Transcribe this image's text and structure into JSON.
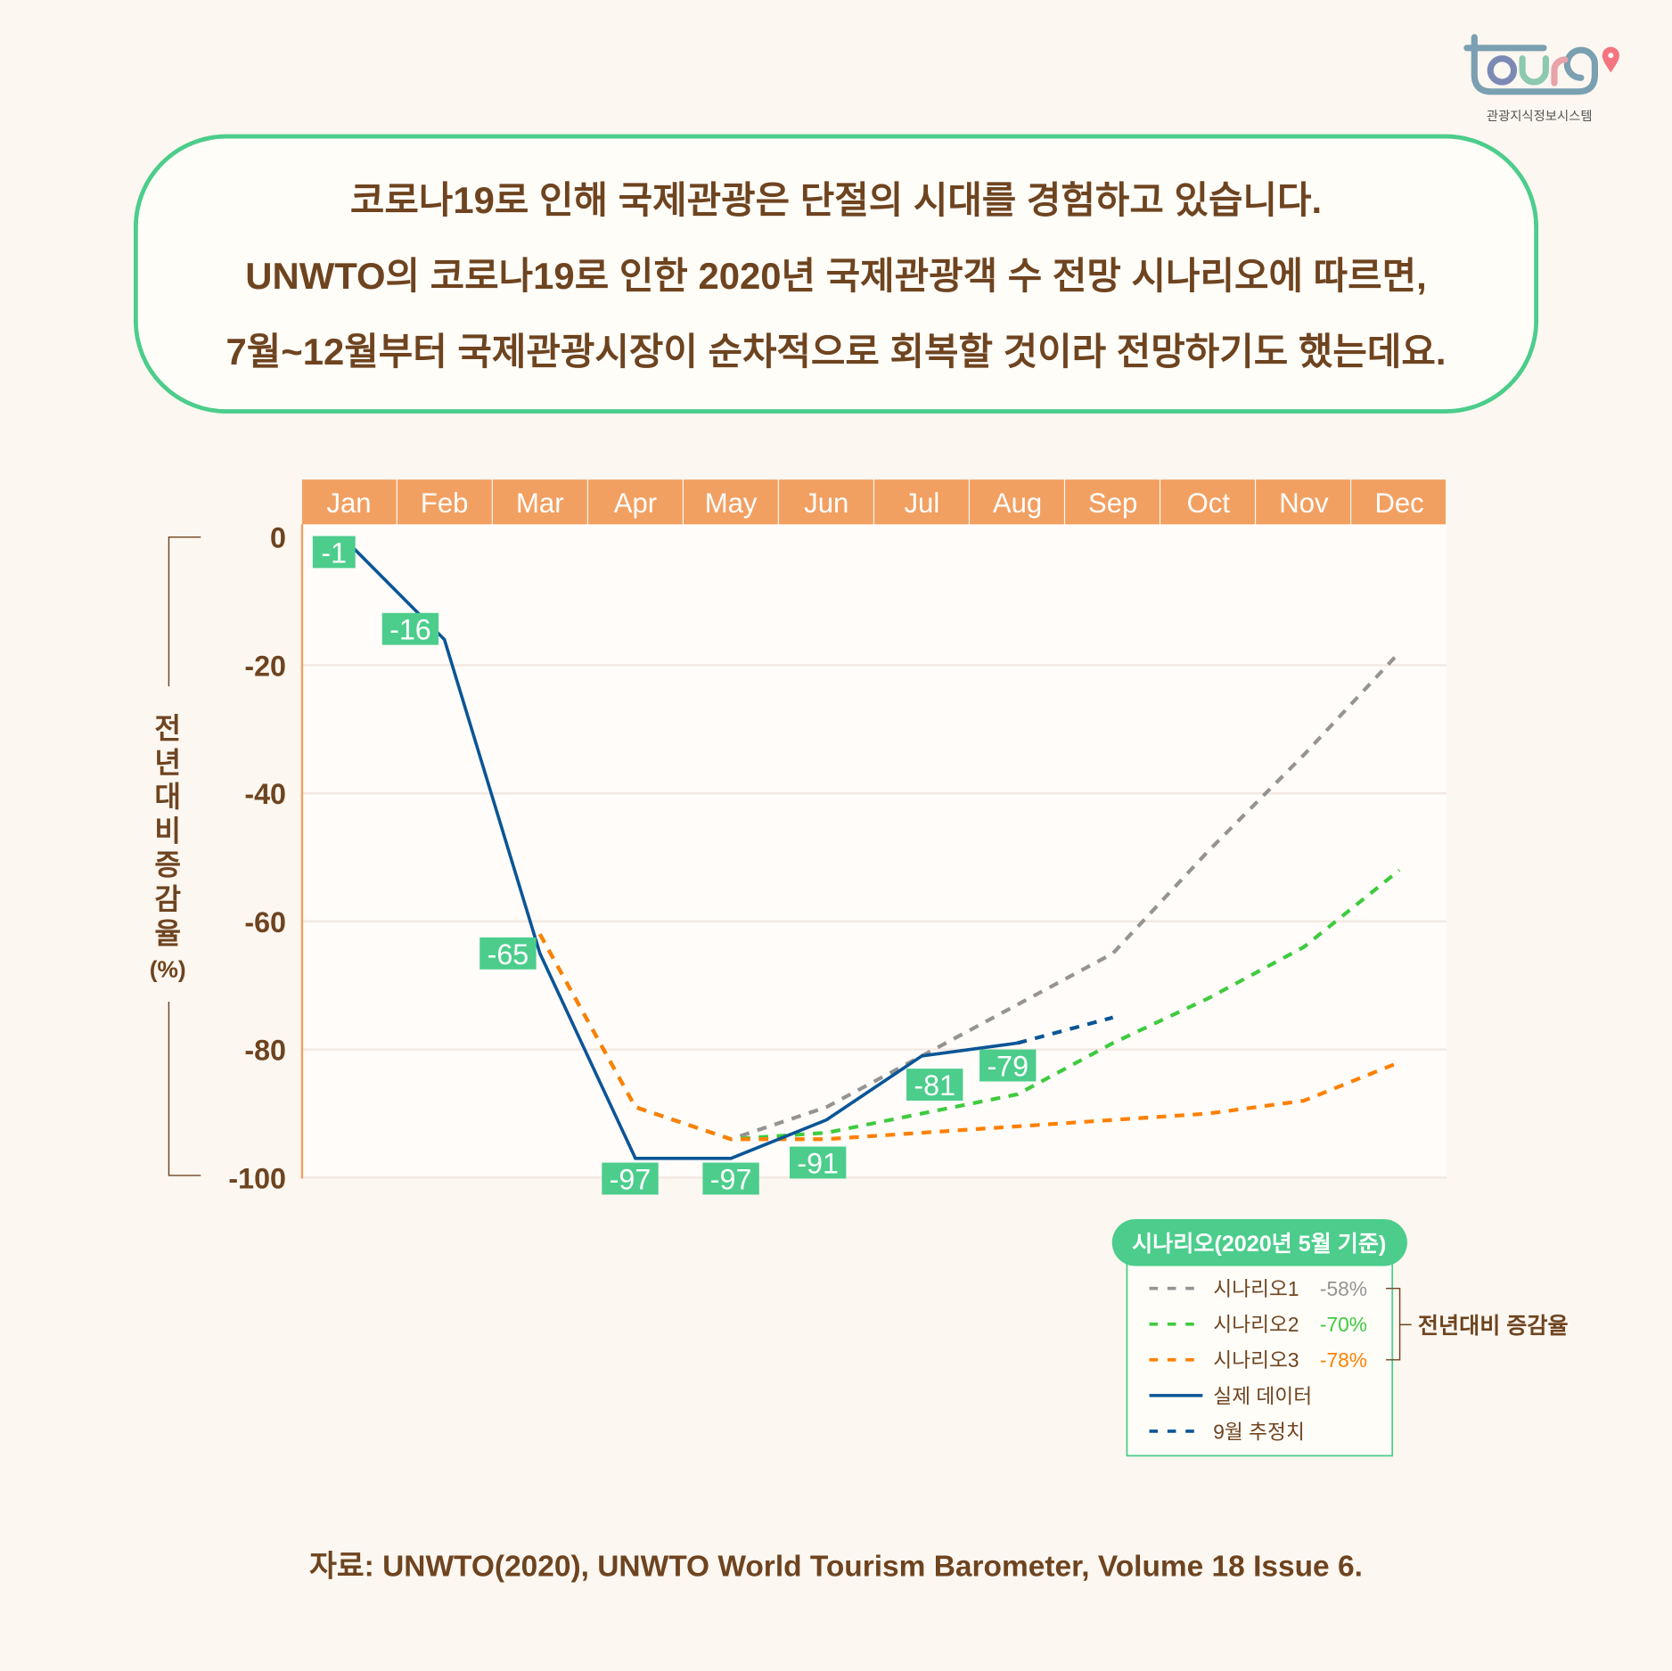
{
  "logo": {
    "text": "tour9",
    "subtitle": "관광지식정보시스템"
  },
  "headline": {
    "lines": [
      "코로나19로 인해 국제관광은 단절의 시대를 경험하고 있습니다.",
      "UNWTO의 코로나19로 인한 2020년 국제관광객 수 전망 시나리오에 따르면,",
      "7월~12월부터 국제관광시장이 순차적으로 회복할 것이라 전망하기도 했는데요."
    ]
  },
  "colors": {
    "accent_green": "#4ccd8c",
    "header_orange": "#f2a062",
    "text_brown": "#6e4420",
    "actual": "#0a5596",
    "scenario1": "#949494",
    "scenario2": "#3ecb3e",
    "scenario3": "#ff8000"
  },
  "chart_data": {
    "type": "line",
    "categories": [
      "Jan",
      "Feb",
      "Mar",
      "Apr",
      "May",
      "Jun",
      "Jul",
      "Aug",
      "Sep",
      "Oct",
      "Nov",
      "Dec"
    ],
    "ylabel": "전년대비증감율(%)",
    "ylim": [
      -100,
      0
    ],
    "yticks": [
      0,
      -20,
      -40,
      -60,
      -80,
      -100
    ],
    "grid": true,
    "series": [
      {
        "name": "시나리오1",
        "key": "scenario1",
        "style": "dashed",
        "values": [
          null,
          null,
          -62,
          -89,
          -94,
          -89,
          -81,
          -73,
          -65,
          -49,
          -34,
          -18
        ]
      },
      {
        "name": "시나리오2",
        "key": "scenario2",
        "style": "dashed",
        "values": [
          null,
          null,
          -62,
          -89,
          -94,
          -93,
          -90,
          -87,
          -79,
          -72,
          -64,
          -52
        ]
      },
      {
        "name": "시나리오3",
        "key": "scenario3",
        "style": "dashed",
        "values": [
          null,
          null,
          -62,
          -89,
          -94,
          -94,
          -93,
          -92,
          -91,
          -90,
          -88,
          -82
        ]
      },
      {
        "name": "실제 데이터",
        "key": "actual",
        "style": "solid",
        "values": [
          -1,
          -16,
          -65,
          -97,
          -97,
          -91,
          -81,
          -79,
          null,
          null,
          null,
          null
        ]
      },
      {
        "name": "9월 추정치",
        "key": "actual",
        "style": "dashed",
        "values": [
          null,
          null,
          null,
          null,
          null,
          null,
          null,
          -79,
          -75,
          null,
          null,
          null
        ]
      }
    ],
    "data_labels": [
      "-1",
      "-16",
      "-65",
      "-97",
      "-97",
      "-91",
      "-81",
      "-79"
    ],
    "legend": {
      "title": "시나리오(2020년 5월 기준)",
      "placement": "bottom-right",
      "items": [
        {
          "label": "시나리오1",
          "value": "-58%",
          "key": "scenario1",
          "style": "dashed"
        },
        {
          "label": "시나리오2",
          "value": "-70%",
          "key": "scenario2",
          "style": "dashed"
        },
        {
          "label": "시나리오3",
          "value": "-78%",
          "key": "scenario3",
          "style": "dashed"
        },
        {
          "label": "실제 데이터",
          "value": "",
          "key": "actual",
          "style": "solid"
        },
        {
          "label": "9월 추정치",
          "value": "",
          "key": "actual",
          "style": "dashed"
        }
      ],
      "bracket_label": "전년대비 증감율"
    }
  },
  "source": "자료: UNWTO(2020), UNWTO World Tourism Barometer, Volume 18 Issue 6."
}
